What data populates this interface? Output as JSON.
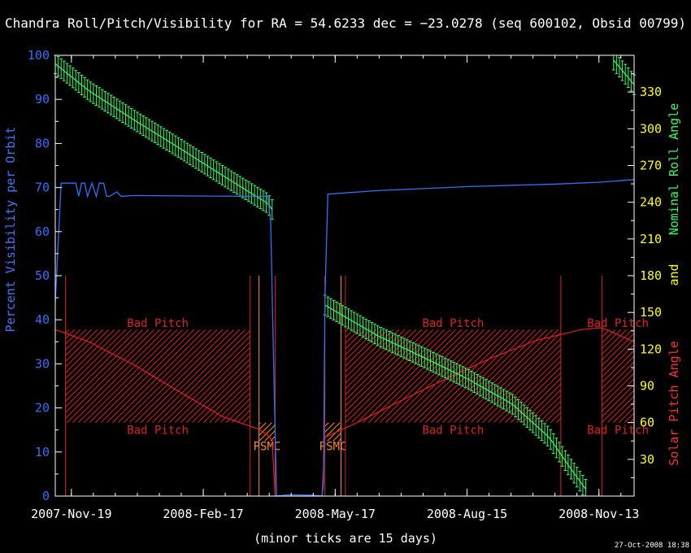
{
  "chart_data": {
    "type": "line",
    "title": "Chandra Roll/Pitch/Visibility for RA = 54.6233 dec = −23.0278 (seq 600102, Obsid 00799)",
    "xlabel": "(minor ticks are 15 days)",
    "ylabel_left": "Percent Visibility per Orbit",
    "ylabel_right_roll": "Nominal Roll Angle",
    "ylabel_right_and": "and",
    "ylabel_right_pitch": "Solar Pitch Angle",
    "timestamp": "27-Oct-2008 18:38",
    "x_range": [
      "2007-11-08",
      "2008-12-07"
    ],
    "x_ticks": [
      "2007-Nov-19",
      "2008-Feb-17",
      "2008-May-17",
      "2008-Aug-15",
      "2008-Nov-13"
    ],
    "y_left": {
      "min": 0,
      "max": 100,
      "ticks": [
        0,
        10,
        20,
        30,
        40,
        50,
        60,
        70,
        80,
        90,
        100
      ]
    },
    "y_right": {
      "min": 0,
      "max": 360,
      "ticks": [
        30,
        60,
        90,
        120,
        150,
        180,
        210,
        240,
        270,
        300,
        330
      ]
    },
    "colors": {
      "visibility": "#3070ff",
      "roll": "#30ff60",
      "pitch": "#e02020",
      "psmc": "#ff8a20",
      "right_axis": "#ffff00",
      "axis": "#ffffff"
    },
    "series": [
      {
        "name": "Percent Visibility per Orbit",
        "points": [
          [
            "2007-11-08",
            44
          ],
          [
            "2007-11-12",
            71
          ],
          [
            "2007-11-22",
            71
          ],
          [
            "2007-11-24",
            68
          ],
          [
            "2007-11-26",
            71
          ],
          [
            "2007-11-28",
            71
          ],
          [
            "2007-11-30",
            68
          ],
          [
            "2007-12-03",
            71
          ],
          [
            "2007-12-06",
            68
          ],
          [
            "2007-12-08",
            71
          ],
          [
            "2007-12-11",
            71
          ],
          [
            "2007-12-13",
            68
          ],
          [
            "2007-12-15",
            68
          ],
          [
            "2007-12-20",
            69
          ],
          [
            "2007-12-23",
            68
          ],
          [
            "2008-01-01",
            68.2
          ],
          [
            "2008-02-01",
            68.1
          ],
          [
            "2008-03-15",
            68
          ],
          [
            "2008-04-01",
            68
          ],
          [
            "2008-04-03",
            62
          ],
          [
            "2008-04-05",
            30
          ],
          [
            "2008-04-07",
            0
          ],
          [
            "2008-04-15",
            0.3
          ],
          [
            "2008-05-01",
            0.2
          ],
          [
            "2008-05-08",
            0
          ],
          [
            "2008-05-09",
            3
          ],
          [
            "2008-05-10",
            45
          ],
          [
            "2008-05-12",
            68.5
          ],
          [
            "2008-06-15",
            69.3
          ],
          [
            "2008-08-15",
            70.2
          ],
          [
            "2008-10-15",
            70.8
          ],
          [
            "2008-11-13",
            71.2
          ],
          [
            "2008-12-07",
            71.8
          ]
        ]
      },
      {
        "name": "Nominal Roll Angle",
        "error_bar_half_width": 8,
        "points": [
          [
            "2007-11-08",
            353
          ],
          [
            "2007-12-01",
            331
          ],
          [
            "2008-01-01",
            307
          ],
          [
            "2008-02-01",
            284
          ],
          [
            "2008-03-01",
            262
          ],
          [
            "2008-04-01",
            239
          ],
          [
            "2008-04-04",
            234
          ],
          [
            "2008-05-10",
            156
          ],
          [
            "2008-06-15",
            131
          ],
          [
            "2008-07-15",
            114
          ],
          [
            "2008-08-15",
            96
          ],
          [
            "2008-09-15",
            75
          ],
          [
            "2008-10-10",
            48
          ],
          [
            "2008-10-25",
            22
          ],
          [
            "2008-11-05",
            4
          ],
          [
            "2008-11-23",
            356
          ],
          [
            "2008-12-07",
            336
          ]
        ]
      },
      {
        "name": "Solar Pitch Angle",
        "points": [
          [
            "2007-11-08",
            136
          ],
          [
            "2007-12-01",
            126
          ],
          [
            "2008-01-01",
            107
          ],
          [
            "2008-02-01",
            85
          ],
          [
            "2008-03-01",
            65
          ],
          [
            "2008-03-25",
            55
          ],
          [
            "2008-04-01",
            50
          ],
          [
            "2008-04-04",
            45
          ],
          [
            "2008-04-06",
            0
          ],
          [
            "2008-05-08",
            0
          ],
          [
            "2008-05-10",
            48
          ],
          [
            "2008-06-01",
            60
          ],
          [
            "2008-07-01",
            78
          ],
          [
            "2008-08-01",
            96
          ],
          [
            "2008-09-01",
            113
          ],
          [
            "2008-10-01",
            127
          ],
          [
            "2008-11-01",
            136
          ],
          [
            "2008-11-15",
            137.5
          ],
          [
            "2008-12-07",
            126
          ]
        ]
      }
    ],
    "bad_pitch_regions": [
      {
        "start": "2007-11-15",
        "end": "2008-03-20",
        "label": "Bad Pitch"
      },
      {
        "start": "2008-05-24",
        "end": "2008-10-18",
        "label": "Bad Pitch"
      },
      {
        "start": "2008-11-15",
        "end": "2008-12-07",
        "label": "Bad Pitch"
      }
    ],
    "bad_pitch_band": [
      60,
      136
    ],
    "psmc_regions": [
      {
        "start": "2008-03-26",
        "end": "2008-04-06",
        "label": "PSMC"
      },
      {
        "start": "2008-05-10",
        "end": "2008-05-21",
        "label": "PSMC"
      }
    ],
    "psmc_band": [
      45,
      60
    ],
    "red_vertical_lines": [
      "2007-11-15",
      "2008-03-20",
      "2008-04-06",
      "2008-05-10",
      "2008-05-24",
      "2008-10-18",
      "2008-11-15"
    ],
    "orange_vertical_lines": [
      "2008-03-26",
      "2008-05-21"
    ]
  }
}
